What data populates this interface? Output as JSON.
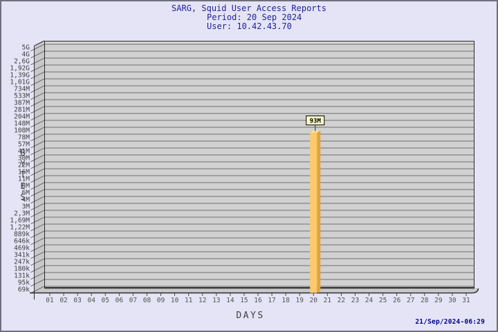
{
  "title": {
    "line1": "SARG, Squid User Access Reports",
    "line2": "Period: 20 Sep 2024",
    "line3": "User: 10.42.43.70"
  },
  "footer": {
    "generated": "21/Sep/2024-06:29"
  },
  "colors": {
    "page_bg": "#E4E4F6",
    "page_border": "#6F6F7E",
    "plot_bg": "#D1D1D1",
    "wall_bg": "#C8C8C8",
    "grid": "#6E6E6E",
    "edge": "#2B2B2B",
    "title": "#1F1F99",
    "axis_text": "#3F3F3F",
    "day_text": "#525252",
    "bar_face": "#FCC96B",
    "bar_side": "#E2A33F",
    "bar_top": "#F9E79B",
    "value_box_bg": "#FFFFC8",
    "value_box_border": "#000000",
    "timestamp": "#00008B"
  },
  "chart_data": {
    "type": "bar",
    "scale": "log",
    "title": "SARG, Squid User Access Reports",
    "subtitle_lines": [
      "Period: 20 Sep 2024",
      "User: 10.42.43.70"
    ],
    "xlabel": "DAYS",
    "ylabel": "BYTES",
    "categories": [
      "01",
      "02",
      "03",
      "04",
      "05",
      "06",
      "07",
      "08",
      "09",
      "10",
      "11",
      "12",
      "13",
      "14",
      "15",
      "16",
      "17",
      "18",
      "19",
      "20",
      "21",
      "22",
      "23",
      "24",
      "25",
      "26",
      "27",
      "28",
      "29",
      "30",
      "31"
    ],
    "series": [
      {
        "name": "bytes-per-day",
        "values": [
          null,
          null,
          null,
          null,
          null,
          null,
          null,
          null,
          null,
          null,
          null,
          null,
          null,
          null,
          null,
          null,
          null,
          null,
          null,
          93000000,
          null,
          null,
          null,
          null,
          null,
          null,
          null,
          null,
          null,
          null,
          null
        ]
      }
    ],
    "value_labels": {
      "20": "93M"
    },
    "y_tick_labels": [
      "5G",
      "4G",
      "2,6G",
      "1,92G",
      "1,39G",
      "1,01G",
      "734M",
      "533M",
      "387M",
      "281M",
      "204M",
      "148M",
      "108M",
      "78M",
      "57M",
      "41M",
      "30M",
      "22M",
      "16M",
      "11M",
      "8M",
      "6M",
      "4M",
      "3M",
      "2,3M",
      "1,69M",
      "1,22M",
      "889k",
      "646k",
      "469k",
      "341k",
      "247k",
      "180k",
      "131k",
      "95k",
      "69k"
    ],
    "y_axis_top_value": 5000000000,
    "y_axis_bottom_value": 69000,
    "grid": true,
    "legend": null,
    "timestamp": "21/Sep/2024-06:29"
  }
}
